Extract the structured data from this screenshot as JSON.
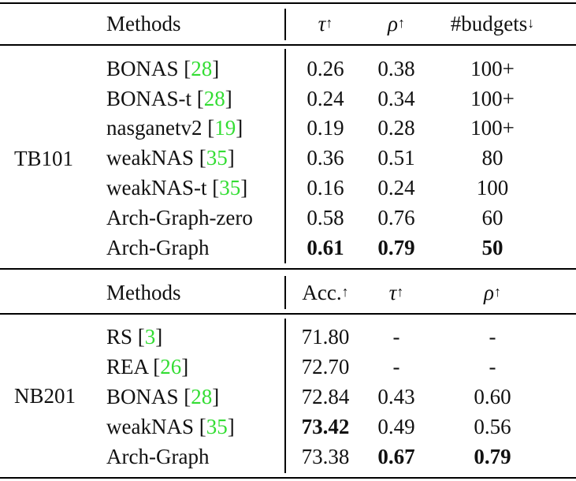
{
  "table1": {
    "header": {
      "methods": "Methods",
      "tau": "τ",
      "rho": "ρ",
      "budgets": "#budgets",
      "up": "↑",
      "down": "↓"
    },
    "group": "TB101",
    "rows": [
      {
        "method": "BONAS",
        "cite": "28",
        "tau": "0.26",
        "rho": "0.38",
        "budgets": "100+"
      },
      {
        "method": "BONAS-t",
        "cite": "28",
        "tau": "0.24",
        "rho": "0.34",
        "budgets": "100+"
      },
      {
        "method": "nasganetv2",
        "cite": "19",
        "tau": "0.19",
        "rho": "0.28",
        "budgets": "100+"
      },
      {
        "method": "weakNAS",
        "cite": "35",
        "tau": "0.36",
        "rho": "0.51",
        "budgets": "80"
      },
      {
        "method": "weakNAS-t",
        "cite": "35",
        "tau": "0.16",
        "rho": "0.24",
        "budgets": "100"
      },
      {
        "method": "Arch-Graph-zero",
        "tau": "0.58",
        "rho": "0.76",
        "budgets": "60"
      },
      {
        "method": "Arch-Graph",
        "tau": "0.61",
        "rho": "0.79",
        "budgets": "50"
      }
    ]
  },
  "table2": {
    "header": {
      "methods": "Methods",
      "acc": "Acc.",
      "tau": "τ",
      "rho": "ρ",
      "up": "↑"
    },
    "group": "NB201",
    "rows": [
      {
        "method": "RS",
        "cite": "3",
        "acc": "71.80",
        "tau": "-",
        "rho": "-"
      },
      {
        "method": "REA",
        "cite": "26",
        "acc": "72.70",
        "tau": "-",
        "rho": "-"
      },
      {
        "method": "BONAS",
        "cite": "28",
        "acc": "72.84",
        "tau": "0.43",
        "rho": "0.60"
      },
      {
        "method": "weakNAS",
        "cite": "35",
        "acc": "73.42",
        "tau": "0.49",
        "rho": "0.56"
      },
      {
        "method": "Arch-Graph",
        "acc": "73.38",
        "tau": "0.67",
        "rho": "0.79"
      }
    ]
  }
}
